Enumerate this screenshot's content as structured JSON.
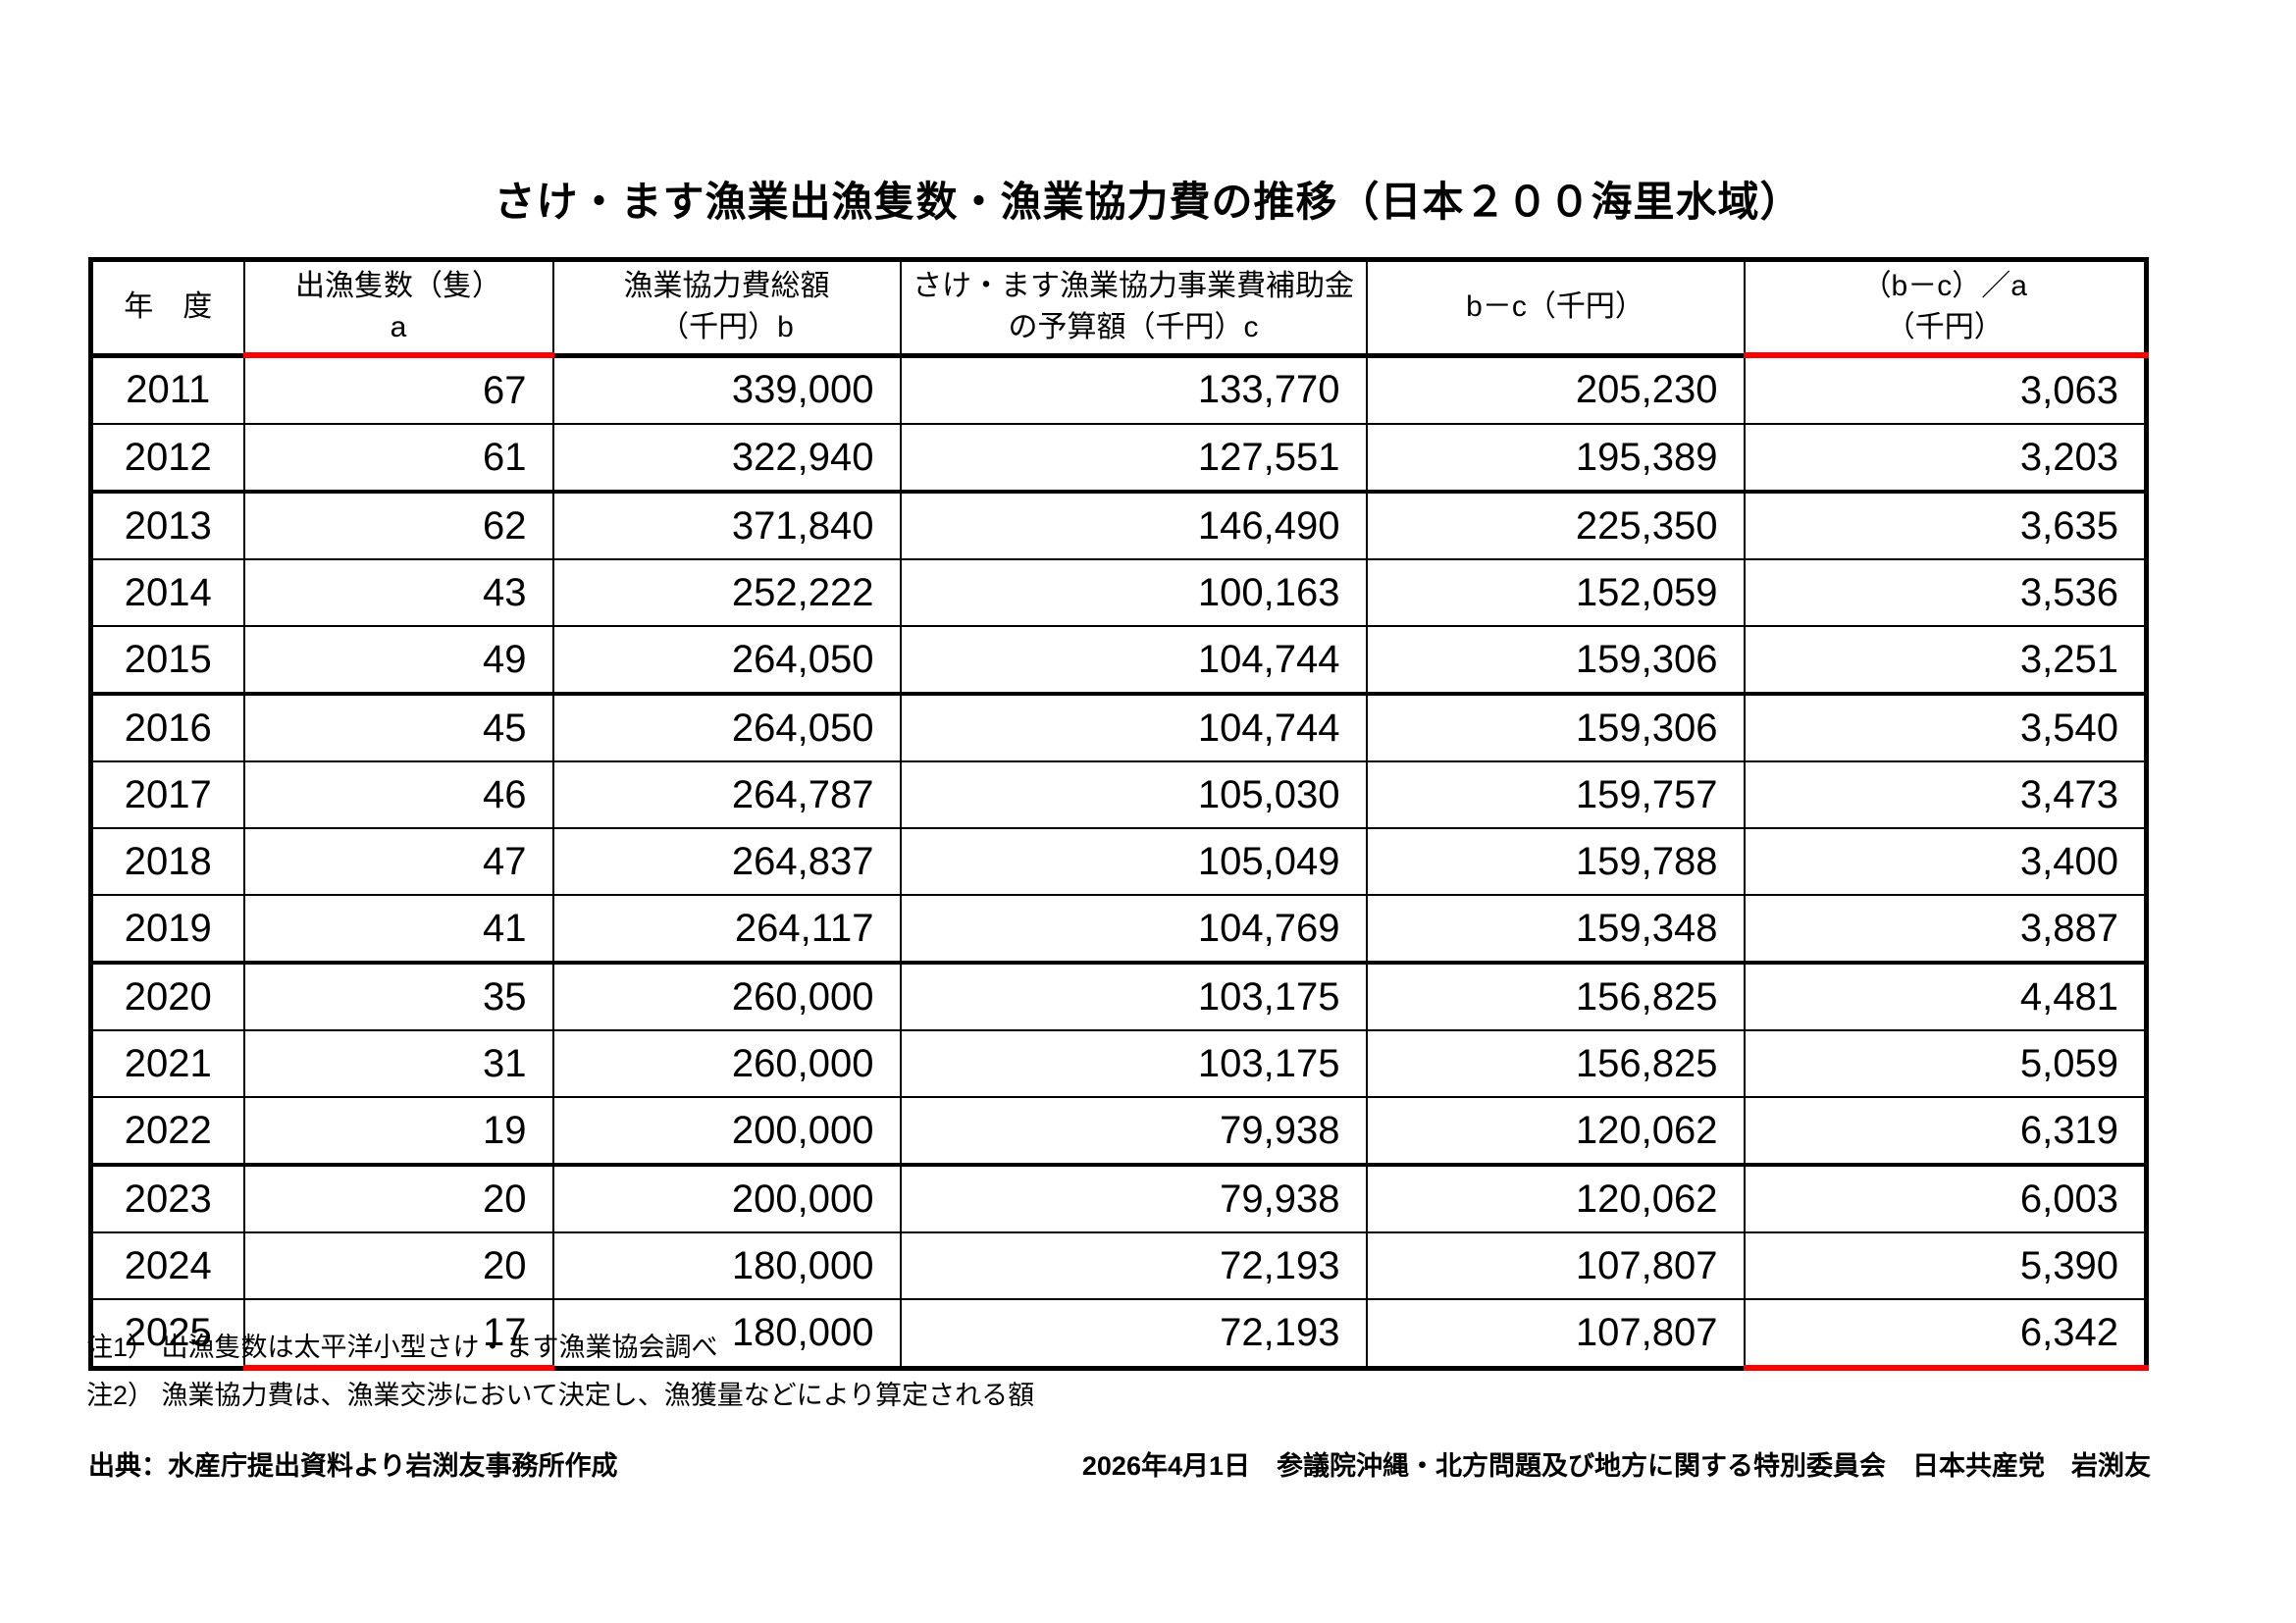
{
  "title": "さけ・ます漁業出漁隻数・漁業協力費の推移（日本２００海里水域）",
  "table": {
    "headers": [
      "年　度",
      "出漁隻数（隻）\na",
      "漁業協力費総額\n（千円）b",
      "さけ・ます漁業協力事業費補助金\nの予算額（千円）c",
      "b－c（千円）",
      "（b－c）／a\n（千円）"
    ],
    "rows": [
      {
        "year": "2011",
        "a": "67",
        "b": "339,000",
        "c": "133,770",
        "b_minus_c": "205,230",
        "b_minus_c_over_a": "3,063"
      },
      {
        "year": "2012",
        "a": "61",
        "b": "322,940",
        "c": "127,551",
        "b_minus_c": "195,389",
        "b_minus_c_over_a": "3,203"
      },
      {
        "year": "2013",
        "a": "62",
        "b": "371,840",
        "c": "146,490",
        "b_minus_c": "225,350",
        "b_minus_c_over_a": "3,635"
      },
      {
        "year": "2014",
        "a": "43",
        "b": "252,222",
        "c": "100,163",
        "b_minus_c": "152,059",
        "b_minus_c_over_a": "3,536"
      },
      {
        "year": "2015",
        "a": "49",
        "b": "264,050",
        "c": "104,744",
        "b_minus_c": "159,306",
        "b_minus_c_over_a": "3,251"
      },
      {
        "year": "2016",
        "a": "45",
        "b": "264,050",
        "c": "104,744",
        "b_minus_c": "159,306",
        "b_minus_c_over_a": "3,540"
      },
      {
        "year": "2017",
        "a": "46",
        "b": "264,787",
        "c": "105,030",
        "b_minus_c": "159,757",
        "b_minus_c_over_a": "3,473"
      },
      {
        "year": "2018",
        "a": "47",
        "b": "264,837",
        "c": "105,049",
        "b_minus_c": "159,788",
        "b_minus_c_over_a": "3,400"
      },
      {
        "year": "2019",
        "a": "41",
        "b": "264,117",
        "c": "104,769",
        "b_minus_c": "159,348",
        "b_minus_c_over_a": "3,887"
      },
      {
        "year": "2020",
        "a": "35",
        "b": "260,000",
        "c": "103,175",
        "b_minus_c": "156,825",
        "b_minus_c_over_a": "4,481"
      },
      {
        "year": "2021",
        "a": "31",
        "b": "260,000",
        "c": "103,175",
        "b_minus_c": "156,825",
        "b_minus_c_over_a": "5,059"
      },
      {
        "year": "2022",
        "a": "19",
        "b": "200,000",
        "c": "79,938",
        "b_minus_c": "120,062",
        "b_minus_c_over_a": "6,319"
      },
      {
        "year": "2023",
        "a": "20",
        "b": "200,000",
        "c": "79,938",
        "b_minus_c": "120,062",
        "b_minus_c_over_a": "6,003"
      },
      {
        "year": "2024",
        "a": "20",
        "b": "180,000",
        "c": "72,193",
        "b_minus_c": "107,807",
        "b_minus_c_over_a": "5,390"
      },
      {
        "year": "2025",
        "a": "17",
        "b": "180,000",
        "c": "72,193",
        "b_minus_c": "107,807",
        "b_minus_c_over_a": "6,342"
      }
    ],
    "group_breaks": [
      2,
      5,
      9,
      12
    ],
    "highlighted_columns": [
      "a",
      "b_minus_c_over_a"
    ]
  },
  "notes": [
    "注1） 出漁隻数は太平洋小型さけ・ます漁業協会調べ",
    "注2） 漁業協力費は、漁業交渉において決定し、漁獲量などにより算定される額"
  ],
  "footer": {
    "source": "出典：水産庁提出資料より岩渕友事務所作成",
    "credit": "2026年4月1日　参議院沖縄・北方問題及び地方に関する特別委員会　日本共産党　岩渕友"
  },
  "colors": {
    "highlight_border": "#FF0000",
    "table_border": "#000000",
    "background": "#FFFFFF"
  }
}
